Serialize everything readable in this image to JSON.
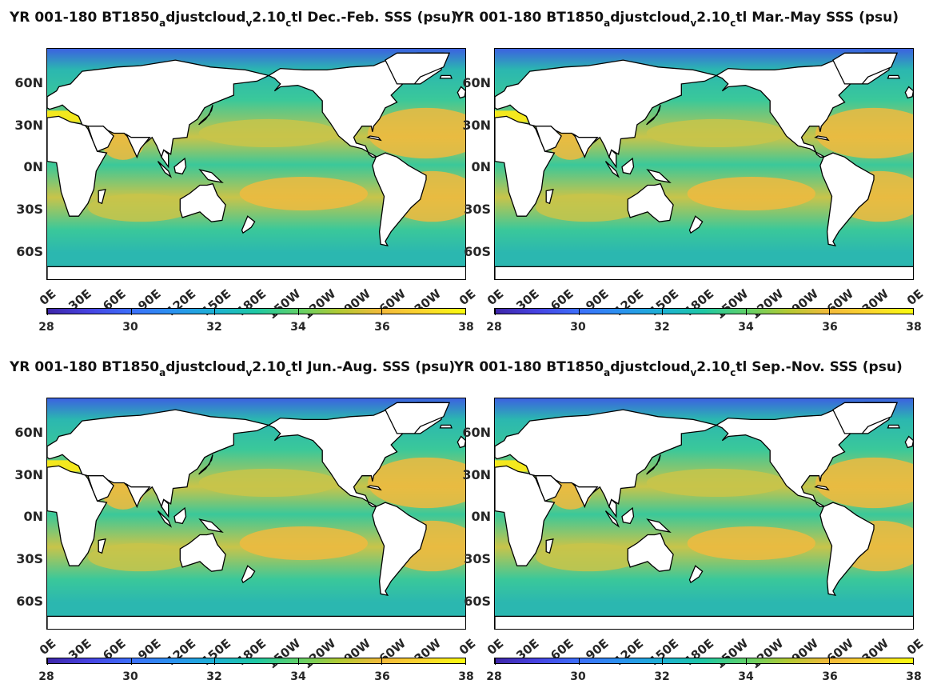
{
  "panels": [
    {
      "title_pre": "YR 001-180 BT1850",
      "sub1": "a",
      "mid1": "djustcloud",
      "sub2": "v",
      "mid2": "2.10",
      "sub3": "c",
      "title_post": "tl Dec.-Feb. SSS (psu)"
    },
    {
      "title_pre": "YR 001-180 BT1850",
      "sub1": "a",
      "mid1": "djustcloud",
      "sub2": "v",
      "mid2": "2.10",
      "sub3": "c",
      "title_post": "tl Mar.-May SSS (psu)"
    },
    {
      "title_pre": "YR 001-180 BT1850",
      "sub1": "a",
      "mid1": "djustcloud",
      "sub2": "v",
      "mid2": "2.10",
      "sub3": "c",
      "title_post": "tl Jun.-Aug. SSS (psu)"
    },
    {
      "title_pre": "YR 001-180 BT1850",
      "sub1": "a",
      "mid1": "djustcloud",
      "sub2": "v",
      "mid2": "2.10",
      "sub3": "c",
      "title_post": "tl Sep.-Nov. SSS (psu)"
    }
  ],
  "lat_labels": [
    "60N",
    "30N",
    "0N",
    "30S",
    "60S"
  ],
  "lon_labels": [
    "0E",
    "30E",
    "60E",
    "90E",
    "120E",
    "150E",
    "180E",
    "150W",
    "120W",
    "90W",
    "60W",
    "30W",
    "0E"
  ],
  "colorbar": {
    "ticks": [
      "28",
      "30",
      "32",
      "34",
      "36",
      "38"
    ],
    "min": 28,
    "max": 38,
    "colormap": [
      "#3e26a8",
      "#4743e2",
      "#3d6ffb",
      "#2b92f0",
      "#1db1d4",
      "#1fc8a4",
      "#5fd16a",
      "#b3c933",
      "#f3ba3b",
      "#fbd62e",
      "#f9fb0e"
    ]
  },
  "colors": {
    "arctic": "#3c62e0",
    "subpolar": "#2bb7b0",
    "mid": "#3ac89a",
    "subtropical": "#c8c44a",
    "salty": "#efba3f",
    "mediterranean": "#f4e81e",
    "land": "#ffffff",
    "coast": "#000000"
  }
}
